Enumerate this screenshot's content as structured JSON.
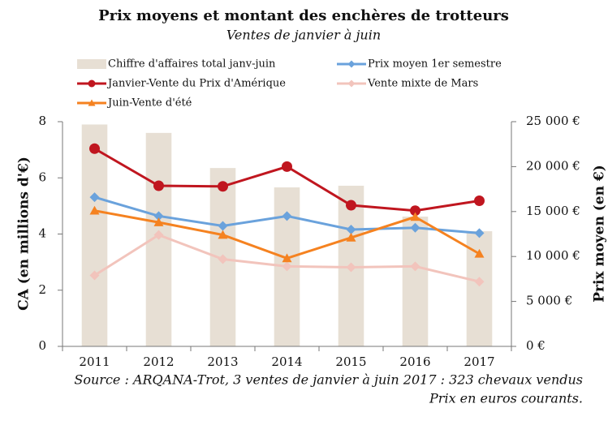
{
  "chart_data": {
    "type": "bar-line",
    "title": "Prix moyens et montant des enchères de trotteurs",
    "subtitle": "Ventes de janvier à juin",
    "ylabel": "CA (en millions d'€)",
    "y2label": "Prix moyen (en €)",
    "categories": [
      "2011",
      "2012",
      "2013",
      "2014",
      "2015",
      "2016",
      "2017"
    ],
    "series": [
      {
        "name": "Chiffre d'affaires total janv-juin",
        "type": "bar",
        "axis": "y",
        "color": "#e7dfd4",
        "values": [
          7.9,
          7.6,
          6.35,
          5.66,
          5.72,
          4.62,
          4.1
        ]
      },
      {
        "name": "Prix moyen 1er semestre",
        "type": "line",
        "axis": "y2",
        "color": "#6aa2dc",
        "marker": "diamond",
        "values": [
          16600,
          14500,
          13400,
          14500,
          13000,
          13200,
          12600
        ]
      },
      {
        "name": "Janvier-Vente du Prix d'Amérique",
        "type": "line",
        "axis": "y2",
        "color": "#c0161f",
        "marker": "circle",
        "values": [
          22000,
          17870,
          17800,
          20000,
          15700,
          15100,
          16200
        ]
      },
      {
        "name": "Vente mixte de Mars",
        "type": "line",
        "axis": "y2",
        "color": "#f2c4bc",
        "marker": "diamond",
        "values": [
          7900,
          12400,
          9700,
          8900,
          8800,
          8900,
          7200
        ]
      },
      {
        "name": "Juin-Vente d'été",
        "type": "line",
        "axis": "y2",
        "color": "#f58220",
        "marker": "triangle",
        "values": [
          15100,
          13800,
          12400,
          9800,
          12100,
          14400,
          10300
        ]
      }
    ],
    "ylim": [
      0,
      8
    ],
    "yticks": [
      0,
      2,
      4,
      6,
      8
    ],
    "y2lim": [
      0,
      25000
    ],
    "y2ticks": [
      {
        "value": 0,
        "label": "0 €"
      },
      {
        "value": 5000,
        "label": "5 000 €"
      },
      {
        "value": 10000,
        "label": "10 000 €"
      },
      {
        "value": 15000,
        "label": "15 000 €"
      },
      {
        "value": 20000,
        "label": "20 000 €"
      },
      {
        "value": 25000,
        "label": "25 000 €"
      }
    ],
    "grid": false,
    "source": [
      "Source : ARQANA-Trot, 3 ventes de janvier à juin 2017 : 323 chevaux vendus",
      "Prix en euros courants."
    ]
  }
}
